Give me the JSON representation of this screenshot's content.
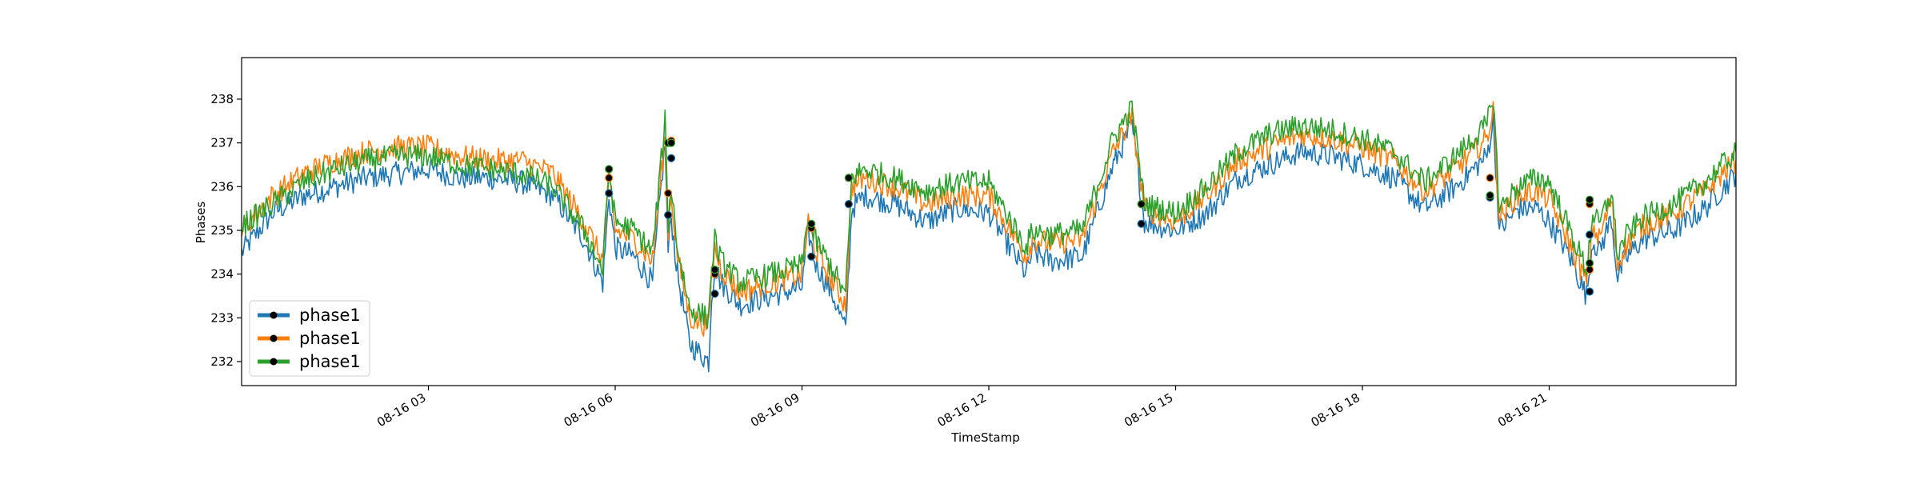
{
  "chart_data": {
    "type": "line",
    "title": "",
    "xlabel": "TimeStamp",
    "ylabel": "Phases",
    "xlim_hours": [
      0,
      24
    ],
    "ylim": [
      231.45,
      238.95
    ],
    "x_ticks": [
      {
        "hour": 3,
        "label": "08-16 03"
      },
      {
        "hour": 6,
        "label": "08-16 06"
      },
      {
        "hour": 9,
        "label": "08-16 09"
      },
      {
        "hour": 12,
        "label": "08-16 12"
      },
      {
        "hour": 15,
        "label": "08-16 15"
      },
      {
        "hour": 18,
        "label": "08-16 18"
      },
      {
        "hour": 21,
        "label": "08-16 21"
      }
    ],
    "y_ticks": [
      {
        "value": 232,
        "label": "232"
      },
      {
        "value": 233,
        "label": "233"
      },
      {
        "value": 234,
        "label": "234"
      },
      {
        "value": 235,
        "label": "235"
      },
      {
        "value": 236,
        "label": "236"
      },
      {
        "value": 237,
        "label": "237"
      },
      {
        "value": 238,
        "label": "238"
      }
    ],
    "grid": false,
    "legend_position": "lower-left",
    "colors": [
      "#1f77b4",
      "#ff7f0e",
      "#2ca02c"
    ],
    "marker_color": "#000000",
    "x": [
      0,
      0.5,
      1,
      1.5,
      2,
      2.5,
      3,
      3.5,
      4,
      4.5,
      5,
      5.5,
      5.8,
      5.9,
      6,
      6.3,
      6.6,
      6.8,
      6.85,
      6.9,
      7,
      7.2,
      7.5,
      7.55,
      7.6,
      7.7,
      8,
      8.5,
      9,
      9.1,
      9.2,
      9.5,
      9.7,
      9.8,
      10,
      10.5,
      11,
      11.5,
      12,
      12.6,
      12.7,
      13,
      13.5,
      14,
      14.3,
      14.5,
      15,
      15.5,
      16,
      16.5,
      17,
      17.5,
      18,
      18.5,
      19,
      19.5,
      20,
      20.1,
      20.2,
      20.5,
      20.8,
      21,
      21.3,
      21.6,
      21.7,
      21.8,
      22,
      22.1,
      22.2,
      22.5,
      23,
      23.5,
      24
    ],
    "series": [
      {
        "name": "phase1",
        "values": [
          234.5,
          235.4,
          235.8,
          236.0,
          236.2,
          236.3,
          236.4,
          236.2,
          236.2,
          236.1,
          235.8,
          234.8,
          233.8,
          235.8,
          234.6,
          234.4,
          233.8,
          237.0,
          234.5,
          235.3,
          234.0,
          232.4,
          232.0,
          233.5,
          234.2,
          233.8,
          233.3,
          233.5,
          233.7,
          235.0,
          234.3,
          233.5,
          232.7,
          235.5,
          235.8,
          235.6,
          235.2,
          235.5,
          235.4,
          234.0,
          234.5,
          234.3,
          234.4,
          236.5,
          237.4,
          235.2,
          235.0,
          235.4,
          236.2,
          236.5,
          236.8,
          236.7,
          236.5,
          236.2,
          235.5,
          236.0,
          236.7,
          237.5,
          235.0,
          235.5,
          235.5,
          235.2,
          234.5,
          233.5,
          234.8,
          234.5,
          235.3,
          233.9,
          234.3,
          234.8,
          235.0,
          235.5,
          236.3
        ]
      },
      {
        "name": "phase1",
        "values": [
          235.0,
          235.8,
          236.3,
          236.6,
          236.8,
          236.9,
          236.9,
          236.7,
          236.6,
          236.6,
          236.3,
          235.2,
          234.3,
          236.2,
          235.0,
          234.8,
          234.3,
          237.2,
          235.0,
          235.8,
          234.4,
          233.0,
          232.8,
          234.0,
          234.6,
          234.1,
          233.6,
          233.8,
          234.0,
          235.2,
          234.6,
          233.8,
          233.3,
          236.0,
          236.2,
          236.0,
          235.6,
          235.8,
          235.8,
          234.4,
          234.8,
          234.7,
          234.8,
          236.8,
          237.6,
          235.5,
          235.2,
          235.8,
          236.6,
          236.9,
          237.2,
          237.1,
          236.9,
          236.6,
          235.9,
          236.4,
          237.1,
          237.8,
          235.3,
          235.8,
          235.9,
          235.7,
          234.8,
          233.8,
          235.1,
          234.8,
          235.7,
          234.2,
          234.6,
          235.1,
          235.4,
          235.9,
          236.6
        ]
      },
      {
        "name": "phase1",
        "values": [
          235.1,
          235.6,
          236.1,
          236.4,
          236.6,
          236.7,
          236.7,
          236.5,
          236.4,
          236.3,
          236.0,
          235.0,
          234.1,
          236.4,
          235.2,
          235.0,
          234.5,
          237.5,
          235.2,
          236.0,
          234.6,
          233.2,
          233.0,
          234.2,
          234.8,
          234.3,
          233.8,
          234.0,
          234.2,
          235.3,
          234.8,
          234.1,
          233.5,
          236.2,
          236.4,
          236.2,
          235.9,
          236.1,
          236.1,
          234.6,
          235.0,
          234.9,
          235.0,
          237.1,
          237.8,
          235.6,
          235.4,
          236.0,
          236.8,
          237.2,
          237.4,
          237.3,
          237.1,
          236.8,
          236.1,
          236.7,
          237.4,
          238.1,
          235.5,
          236.0,
          236.2,
          236.1,
          235.1,
          234.1,
          235.4,
          235.1,
          235.9,
          234.4,
          234.8,
          235.3,
          235.6,
          236.1,
          236.8
        ]
      }
    ],
    "markers": [
      {
        "x": 5.9,
        "values": [
          235.85,
          236.2,
          236.4
        ]
      },
      {
        "x": 6.85,
        "values": [
          235.35,
          235.85,
          237.0
        ]
      },
      {
        "x": 6.9,
        "values": [
          236.65,
          237.05,
          237.0
        ]
      },
      {
        "x": 7.6,
        "values": [
          233.55,
          234.0,
          234.1
        ]
      },
      {
        "x": 9.15,
        "values": [
          234.4,
          235.05,
          235.15
        ]
      },
      {
        "x": 9.75,
        "values": [
          235.6,
          236.2,
          236.2
        ]
      },
      {
        "x": 14.45,
        "values": [
          235.15,
          235.6,
          235.6
        ]
      },
      {
        "x": 20.05,
        "values": [
          235.75,
          236.2,
          235.8
        ]
      },
      {
        "x": 21.65,
        "values": [
          233.6,
          234.1,
          234.25
        ]
      },
      {
        "x": 21.65,
        "values": [
          234.9,
          235.6,
          235.7
        ]
      }
    ]
  }
}
